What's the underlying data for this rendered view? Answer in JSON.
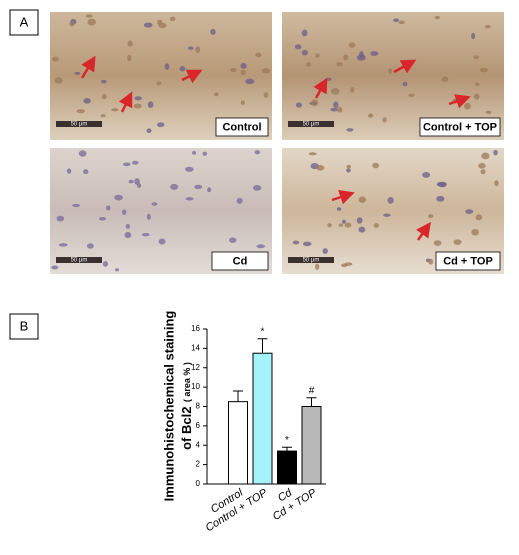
{
  "panels": {
    "a": "A",
    "b": "B"
  },
  "micrographs": [
    {
      "label": "Control",
      "scale_bar": "50 µm"
    },
    {
      "label": "Control + TOP",
      "scale_bar": "50 µm"
    },
    {
      "label": "Cd",
      "scale_bar": "50 µm"
    },
    {
      "label": "Cd + TOP",
      "scale_bar": "50 µm"
    }
  ],
  "chart_data": {
    "type": "bar",
    "y_label": [
      "Immunohistochemical staining",
      "of  Bcl2",
      "( area % )"
    ],
    "categories": [
      "Control",
      "Control + TOP",
      "Cd",
      "Cd + TOP"
    ],
    "values": [
      8.5,
      13.5,
      3.4,
      8.0
    ],
    "errors": [
      1.1,
      1.5,
      0.4,
      0.9
    ],
    "annotations": [
      null,
      "*",
      "*",
      "#"
    ],
    "colors": [
      "#ffffff",
      "#a6f2fa",
      "#000000",
      "#b8b8b8"
    ],
    "ylim": [
      0,
      16
    ],
    "yticks": [
      0,
      2,
      4,
      6,
      8,
      10,
      12,
      14,
      16
    ]
  }
}
